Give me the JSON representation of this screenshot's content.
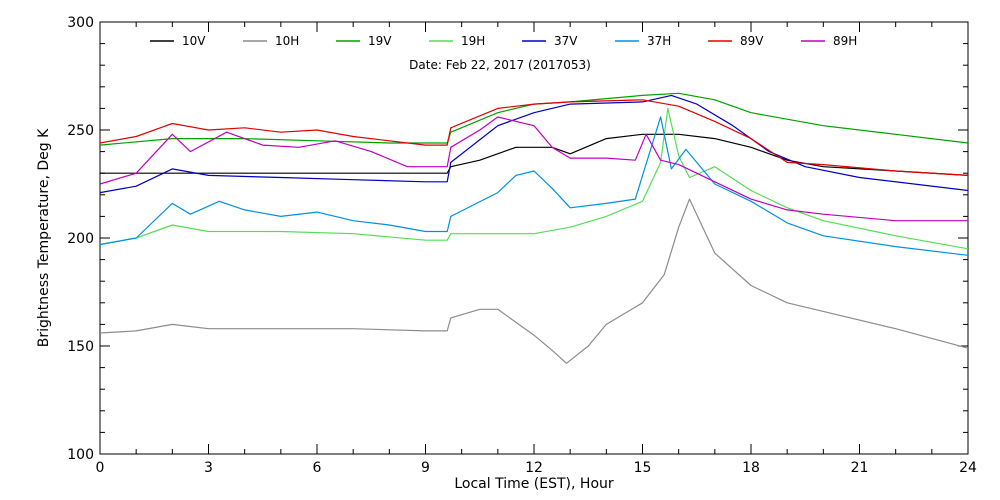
{
  "chart_data": {
    "type": "line",
    "title": "",
    "annotation": "Date: Feb 22, 2017 (2017053)",
    "xlabel": "Local Time (EST), Hour",
    "ylabel": "Brightness Temperature, Deg K",
    "xlim": [
      0,
      24
    ],
    "ylim": [
      100,
      300
    ],
    "xticks": [
      0,
      3,
      6,
      9,
      12,
      15,
      18,
      21,
      24
    ],
    "yticks": [
      100,
      150,
      200,
      250,
      300
    ],
    "grid": false,
    "legend": "top",
    "series": [
      {
        "name": "10V",
        "color": "#000000",
        "points": [
          [
            0,
            230
          ],
          [
            2,
            230
          ],
          [
            4,
            230
          ],
          [
            6,
            230
          ],
          [
            8,
            230
          ],
          [
            9.6,
            230
          ],
          [
            9.7,
            233
          ],
          [
            10.5,
            236
          ],
          [
            11.5,
            242
          ],
          [
            12.5,
            242
          ],
          [
            13,
            239
          ],
          [
            14,
            246
          ],
          [
            15,
            248
          ],
          [
            16,
            248
          ],
          [
            17,
            246
          ],
          [
            18,
            242
          ],
          [
            19,
            236
          ],
          [
            20,
            233
          ],
          [
            22,
            231
          ],
          [
            24,
            229
          ]
        ]
      },
      {
        "name": "10H",
        "color": "#8c8c8c",
        "points": [
          [
            0,
            156
          ],
          [
            1,
            157
          ],
          [
            2,
            160
          ],
          [
            3,
            158
          ],
          [
            5,
            158
          ],
          [
            7,
            158
          ],
          [
            9,
            157
          ],
          [
            9.6,
            157
          ],
          [
            9.7,
            163
          ],
          [
            10.5,
            167
          ],
          [
            11,
            167
          ],
          [
            12,
            155
          ],
          [
            12.5,
            148
          ],
          [
            12.9,
            142
          ],
          [
            13.5,
            150
          ],
          [
            14,
            160
          ],
          [
            15,
            170
          ],
          [
            15.6,
            183
          ],
          [
            16,
            205
          ],
          [
            16.3,
            218
          ],
          [
            17,
            193
          ],
          [
            18,
            178
          ],
          [
            19,
            170
          ],
          [
            20,
            166
          ],
          [
            22,
            158
          ],
          [
            24,
            149
          ]
        ]
      },
      {
        "name": "19V",
        "color": "#00a000",
        "points": [
          [
            0,
            243
          ],
          [
            2,
            246
          ],
          [
            4,
            246
          ],
          [
            6,
            245
          ],
          [
            8,
            244
          ],
          [
            9.6,
            244
          ],
          [
            9.7,
            249
          ],
          [
            11,
            258
          ],
          [
            12,
            262
          ],
          [
            13,
            263
          ],
          [
            15,
            266
          ],
          [
            16,
            267
          ],
          [
            17,
            264
          ],
          [
            18,
            258
          ],
          [
            20,
            252
          ],
          [
            22,
            248
          ],
          [
            24,
            244
          ]
        ]
      },
      {
        "name": "19H",
        "color": "#55dd55",
        "points": [
          [
            0,
            197
          ],
          [
            1,
            200
          ],
          [
            2,
            206
          ],
          [
            3,
            203
          ],
          [
            5,
            203
          ],
          [
            7,
            202
          ],
          [
            9,
            199
          ],
          [
            9.6,
            199
          ],
          [
            9.7,
            202
          ],
          [
            11,
            202
          ],
          [
            12,
            202
          ],
          [
            13,
            205
          ],
          [
            14,
            210
          ],
          [
            15,
            217
          ],
          [
            15.5,
            235
          ],
          [
            15.7,
            260
          ],
          [
            16,
            238
          ],
          [
            16.3,
            228
          ],
          [
            17,
            233
          ],
          [
            18,
            222
          ],
          [
            19,
            214
          ],
          [
            20,
            208
          ],
          [
            22,
            201
          ],
          [
            24,
            195
          ]
        ]
      },
      {
        "name": "37V",
        "color": "#0000c0",
        "points": [
          [
            0,
            221
          ],
          [
            1,
            224
          ],
          [
            2,
            232
          ],
          [
            3,
            229
          ],
          [
            5,
            228
          ],
          [
            7,
            227
          ],
          [
            9,
            226
          ],
          [
            9.6,
            226
          ],
          [
            9.7,
            235
          ],
          [
            11,
            252
          ],
          [
            12,
            258
          ],
          [
            13,
            262
          ],
          [
            15,
            263
          ],
          [
            15.8,
            266
          ],
          [
            16.5,
            262
          ],
          [
            17.5,
            252
          ],
          [
            18.5,
            240
          ],
          [
            19.5,
            233
          ],
          [
            21,
            228
          ],
          [
            24,
            222
          ]
        ]
      },
      {
        "name": "37H",
        "color": "#0090e0",
        "points": [
          [
            0,
            197
          ],
          [
            1,
            200
          ],
          [
            2,
            216
          ],
          [
            2.5,
            211
          ],
          [
            3.3,
            217
          ],
          [
            4,
            213
          ],
          [
            5,
            210
          ],
          [
            6,
            212
          ],
          [
            7,
            208
          ],
          [
            8,
            206
          ],
          [
            9,
            203
          ],
          [
            9.6,
            203
          ],
          [
            9.7,
            210
          ],
          [
            11,
            221
          ],
          [
            11.5,
            229
          ],
          [
            12,
            231
          ],
          [
            12.5,
            223
          ],
          [
            13,
            214
          ],
          [
            14,
            216
          ],
          [
            14.8,
            218
          ],
          [
            15.5,
            256
          ],
          [
            15.8,
            232
          ],
          [
            16.2,
            241
          ],
          [
            17,
            225
          ],
          [
            18,
            217
          ],
          [
            19,
            207
          ],
          [
            20,
            201
          ],
          [
            22,
            196
          ],
          [
            24,
            192
          ]
        ]
      },
      {
        "name": "89V",
        "color": "#e00000",
        "points": [
          [
            0,
            244
          ],
          [
            1,
            247
          ],
          [
            2,
            253
          ],
          [
            3,
            250
          ],
          [
            4,
            251
          ],
          [
            5,
            249
          ],
          [
            6,
            250
          ],
          [
            7,
            247
          ],
          [
            8,
            245
          ],
          [
            9,
            243
          ],
          [
            9.6,
            243
          ],
          [
            9.7,
            251
          ],
          [
            11,
            260
          ],
          [
            12,
            262
          ],
          [
            13,
            263
          ],
          [
            15,
            264
          ],
          [
            16,
            261
          ],
          [
            17,
            254
          ],
          [
            18,
            246
          ],
          [
            19,
            235
          ],
          [
            20,
            234
          ],
          [
            22,
            231
          ],
          [
            24,
            229
          ]
        ]
      },
      {
        "name": "89H",
        "color": "#c000c0",
        "points": [
          [
            0,
            225
          ],
          [
            1,
            230
          ],
          [
            2,
            248
          ],
          [
            2.5,
            240
          ],
          [
            3.5,
            249
          ],
          [
            4.5,
            243
          ],
          [
            5.5,
            242
          ],
          [
            6.5,
            245
          ],
          [
            7.5,
            240
          ],
          [
            8.5,
            233
          ],
          [
            9.6,
            233
          ],
          [
            9.7,
            242
          ],
          [
            10.5,
            250
          ],
          [
            11,
            256
          ],
          [
            12,
            252
          ],
          [
            12.5,
            242
          ],
          [
            13,
            237
          ],
          [
            14,
            237
          ],
          [
            14.8,
            236
          ],
          [
            15.1,
            248
          ],
          [
            15.5,
            236
          ],
          [
            16,
            234
          ],
          [
            17,
            226
          ],
          [
            18,
            218
          ],
          [
            19,
            213
          ],
          [
            20,
            211
          ],
          [
            22,
            208
          ],
          [
            24,
            208
          ]
        ]
      }
    ]
  }
}
